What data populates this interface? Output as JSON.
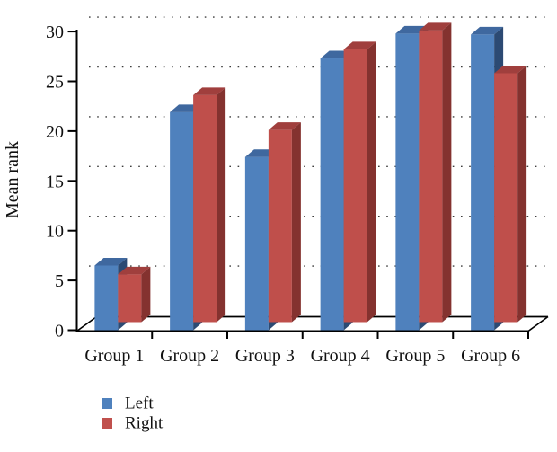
{
  "chart_data": {
    "type": "bar",
    "style": "3d-clustered",
    "title": "",
    "xlabel": "",
    "ylabel": "Mean rank",
    "ylim": [
      0,
      30
    ],
    "ytick_step": 5,
    "yticks": [
      0,
      5,
      10,
      15,
      20,
      25,
      30
    ],
    "grid": "dotted-horizontal-backwall",
    "categories": [
      "Group 1",
      "Group 2",
      "Group 3",
      "Group 4",
      "Group 5",
      "Group 6"
    ],
    "series": [
      {
        "name": "Left",
        "color": "#4f81bd",
        "values": [
          6.5,
          21.9,
          17.4,
          27.3,
          29.8,
          29.7
        ]
      },
      {
        "name": "Right",
        "color": "#c0504d",
        "values": [
          4.8,
          22.8,
          19.3,
          27.4,
          29.3,
          25.0
        ]
      }
    ],
    "legend_position": "bottom-left",
    "legend_marker": "square"
  },
  "colors": {
    "background": "#ffffff",
    "axis": "#000000",
    "grid_dot": "#3d3d3d",
    "text": "#111111",
    "left_front": "#4f81bd",
    "left_top": "#3f689f",
    "left_side": "#2c4a73",
    "right_front": "#bf4f4b",
    "right_top": "#a03f3d",
    "right_side": "#84322f"
  }
}
